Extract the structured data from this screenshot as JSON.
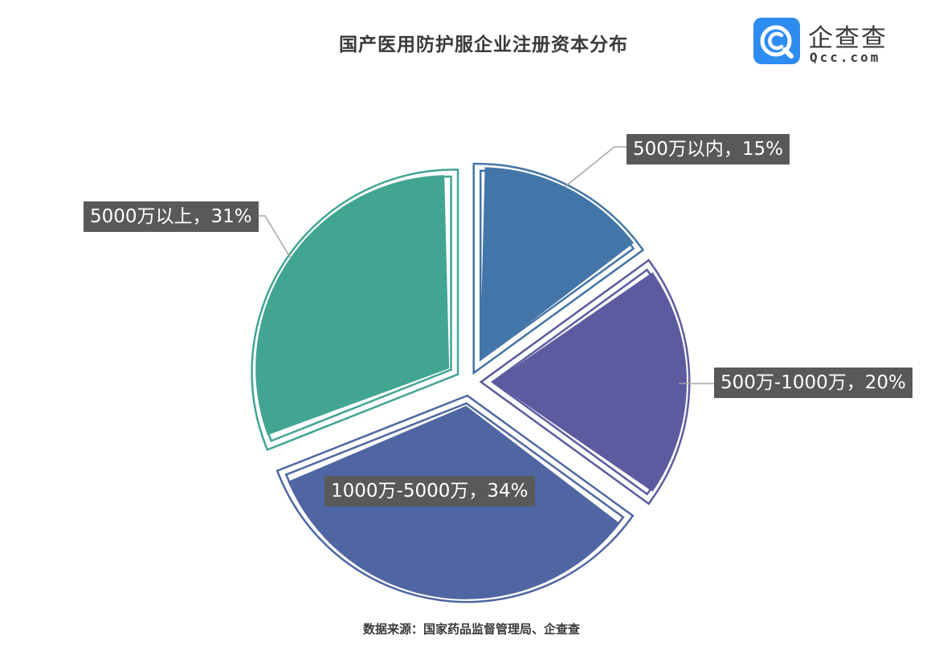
{
  "title": "国产医用防护服企业注册资本分布",
  "logo": {
    "name": "企查查",
    "sub": "Qcc.com",
    "icon": "qcc-logo-icon",
    "color": "#2e8cf0"
  },
  "source": "数据来源：国家药品监督管理局、企查查",
  "chart_data": {
    "type": "pie",
    "title": "国产医用防护服企业注册资本分布",
    "slices": [
      {
        "name": "500万以内",
        "value": 15,
        "label": "500万以内，15%",
        "color": "#4475a8"
      },
      {
        "name": "500万-1000万",
        "value": 20,
        "label": "500万-1000万，20%",
        "color": "#5d5ba0"
      },
      {
        "name": "1000万-5000万",
        "value": 34,
        "label": "1000万-5000万，34%",
        "color": "#5066a2"
      },
      {
        "name": "5000万以上",
        "value": 31,
        "label": "5000万以上，31%",
        "color": "#41a592"
      }
    ],
    "start_angle_deg": 0,
    "direction": "clockwise",
    "exploded": true
  }
}
